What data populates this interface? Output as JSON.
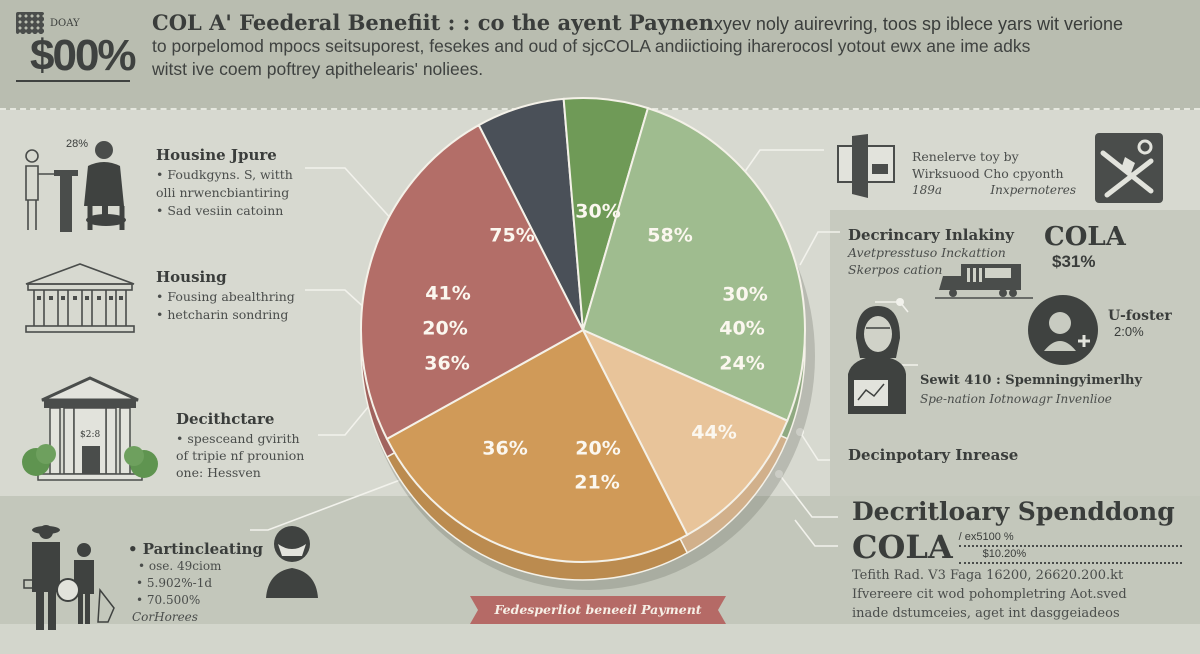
{
  "header": {
    "brand": {
      "calendar_label": "DOAY",
      "value": "$00%"
    },
    "title": "COL A' Feederal Benefiit : : co the ayent Paynen",
    "title_tail": "xyev noly auirevring, toos sp iblece yars wit verione",
    "lines": [
      "to porpelomod mpocs seitsuporest, fesekes and oud of sjcCOLA andiictioing iharerocosl yotout ewx ane ime adks",
      "witst ive coem poftrey apithelearis' noliees."
    ]
  },
  "left_panels": [
    {
      "icon": "people-handshake-icon",
      "icon_badge": "28%",
      "heading": "Housine Jpure",
      "lines": [
        "• Foudkgyns. S, witth",
        "olli nrwencbiantiring",
        "• Sad vesiin catoinn"
      ]
    },
    {
      "icon": "government-building-icon",
      "heading": "Housing",
      "lines": [
        "• Fousing abealthring",
        "• hetcharin sondring"
      ]
    },
    {
      "icon": "bank-building-icon",
      "icon_badge": "$2:8",
      "heading": "Decithctare",
      "lines": [
        "• spesceand gvirith",
        "of tripie nf prounion",
        "one: Hessven"
      ]
    },
    {
      "icon": "family-icon",
      "heading": "• Partincleating",
      "lines": [
        "• ose. 49ciom",
        "• 5.902%-1d",
        "• 70.500%"
      ],
      "footnote": "CorHorees",
      "side_icon": "masked-person-icon"
    }
  ],
  "right_panels": {
    "top": {
      "icon": "door-icon",
      "lines": [
        "Renelerve toy by",
        "Wirksuood Cho cpyonth"
      ],
      "left_foot": "189a",
      "right_foot": "Inxpernoteres",
      "side_icon": "tools-icon"
    },
    "discretionary": {
      "heading": "Decrincary Inlakiny",
      "lines": [
        "Avetpresstuso Inckattion",
        "Skerpos cation"
      ],
      "icon": "truck-icon",
      "cola_label": "COLA",
      "cola_value": "$31%"
    },
    "person": {
      "icon": "woman-icon",
      "avatar_icon": "user-add-icon",
      "avatar_label": "U-foster",
      "avatar_value": "2:0%",
      "title": "Sewit 410 : Spemningyimerlhy",
      "subtitle": "Spe-nation Iotnowagr Invenlioe"
    },
    "increase": {
      "heading": "Decinpotary Inrease"
    },
    "spending": {
      "heading": "Decritloary Spenddong",
      "cola": "COLA",
      "row1": "/ ex5100 %",
      "row2": "$10.20%",
      "text": [
        "Tefith Rad. V3 Faga 16200, 26620.200.kt",
        "Ifvereere cit wod pohompletring Aot.sved",
        "inade dstumceies, aget int dasggeiadeos"
      ]
    }
  },
  "ribbon": {
    "label": "Fedesperliot beneeil Payment",
    "color": "#b56a66"
  },
  "chart_data": {
    "type": "pie",
    "title": "Fedesperliot beneeil Payment",
    "center": [
      583,
      330
    ],
    "radius": [
      222,
      232
    ],
    "depth": 18,
    "slices": [
      {
        "name": "Dark",
        "color": "#4a5058",
        "start_deg": -118,
        "end_deg": -95,
        "labels": [
          "75%"
        ]
      },
      {
        "name": "Green",
        "color": "#6f9a57",
        "start_deg": -95,
        "end_deg": -73,
        "labels": [
          "30%"
        ]
      },
      {
        "name": "Sage",
        "color": "#9fbc8f",
        "start_deg": -73,
        "end_deg": 23,
        "labels": [
          "58%",
          "30%",
          "40%",
          "24%"
        ]
      },
      {
        "name": "Peach",
        "color": "#e8c49a",
        "start_deg": 23,
        "end_deg": 62,
        "labels": [
          "44%"
        ]
      },
      {
        "name": "Orange",
        "color": "#d09a58",
        "start_deg": 62,
        "end_deg": 152,
        "labels": [
          "36%",
          "20%",
          "21%"
        ]
      },
      {
        "name": "Red",
        "color": "#b36e68",
        "start_deg": 152,
        "end_deg": 242,
        "labels": [
          "41%",
          "20%",
          "36%"
        ]
      }
    ],
    "label_positions": [
      [
        [
          512,
          236
        ]
      ],
      [
        [
          598,
          212
        ]
      ],
      [
        [
          670,
          236
        ],
        [
          745,
          295
        ],
        [
          742,
          329
        ],
        [
          742,
          364
        ]
      ],
      [
        [
          714,
          433
        ]
      ],
      [
        [
          505,
          449
        ],
        [
          598,
          449
        ],
        [
          597,
          483
        ]
      ],
      [
        [
          448,
          294
        ],
        [
          445,
          329
        ],
        [
          447,
          364
        ]
      ]
    ],
    "legend": "none",
    "grid": false
  }
}
